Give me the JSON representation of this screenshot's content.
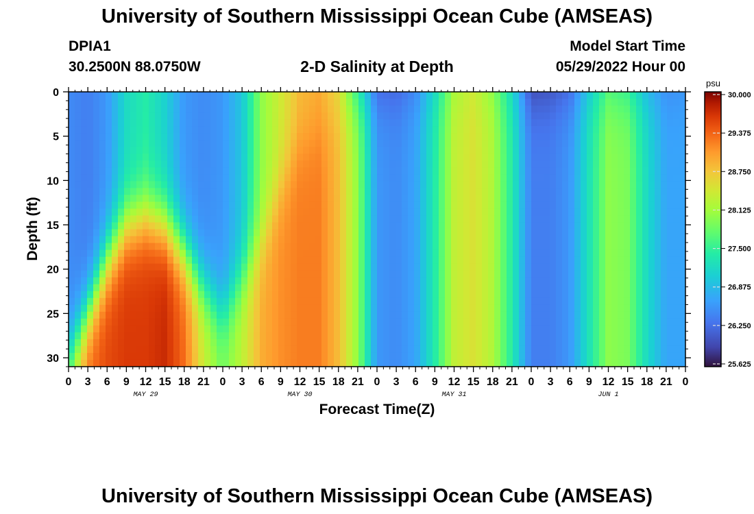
{
  "header": {
    "title": "University of Southern Mississippi Ocean Cube (AMSEAS)",
    "station": "DPIA1",
    "coords": "30.2500N  88.0750W",
    "subtitle": "2-D Salinity at Depth",
    "start_label": "Model Start Time",
    "start_value": "05/29/2022 Hour 00"
  },
  "footer": {
    "title": "University of Southern Mississippi Ocean Cube (AMSEAS)"
  },
  "chart_data": {
    "type": "heatmap",
    "title": "2-D Salinity at Depth",
    "xlabel": "Forecast Time(Z)",
    "ylabel": "Depth (ft)",
    "x_range_hours": [
      0,
      96
    ],
    "y_range_ft": [
      0,
      31
    ],
    "y_inverted": true,
    "x_tick_labels": [
      "0",
      "3",
      "6",
      "9",
      "12",
      "15",
      "18",
      "21",
      "0",
      "3",
      "6",
      "9",
      "12",
      "15",
      "18",
      "21",
      "0",
      "3",
      "6",
      "9",
      "12",
      "15",
      "18",
      "21",
      "0",
      "3",
      "6",
      "9",
      "12",
      "15",
      "18",
      "21",
      "0"
    ],
    "day_labels": [
      {
        "label": "MAY 29",
        "hour": 12
      },
      {
        "label": "MAY 30",
        "hour": 36
      },
      {
        "label": "MAY 31",
        "hour": 60
      },
      {
        "label": "JUN 1",
        "hour": 84
      }
    ],
    "y_ticks": [
      0,
      5,
      10,
      15,
      20,
      25,
      30
    ],
    "colorbar": {
      "unit": "psu",
      "min": 25.625,
      "max": 30.0,
      "tick_labels": [
        "30.000",
        "29.375",
        "28.750",
        "28.125",
        "27.500",
        "26.875",
        "26.250",
        "25.625"
      ]
    },
    "salinity_profile": {
      "hours": [
        0,
        3,
        6,
        9,
        12,
        15,
        18,
        21,
        24,
        27,
        30,
        33,
        36,
        39,
        42,
        45,
        48,
        51,
        54,
        57,
        60,
        63,
        66,
        69,
        72,
        75,
        78,
        81,
        84,
        87,
        90,
        93,
        96
      ],
      "surface_psu": [
        26.5,
        26.4,
        26.6,
        27.2,
        27.4,
        27.1,
        26.6,
        26.5,
        26.6,
        27.0,
        28.0,
        28.4,
        28.8,
        28.9,
        28.5,
        27.0,
        26.0,
        26.0,
        26.3,
        27.0,
        28.0,
        28.3,
        27.8,
        27.0,
        25.7,
        25.8,
        26.0,
        26.8,
        27.4,
        27.2,
        26.6,
        26.4,
        26.5
      ],
      "bottom_psu": [
        28.2,
        29.3,
        29.5,
        29.6,
        29.6,
        29.7,
        29.3,
        28.4,
        27.9,
        28.3,
        28.9,
        29.1,
        29.2,
        29.2,
        28.8,
        28.0,
        26.6,
        26.5,
        26.7,
        27.4,
        28.3,
        28.5,
        28.2,
        27.4,
        26.4,
        26.4,
        26.6,
        27.3,
        28.0,
        27.9,
        27.2,
        26.7,
        26.7
      ],
      "halocline_ft": [
        30,
        25,
        19,
        15,
        14,
        15,
        18,
        22,
        25,
        21,
        17,
        11,
        6,
        4,
        2,
        0,
        0,
        0,
        0,
        0,
        0,
        0,
        0,
        0,
        0,
        0,
        0,
        0,
        0,
        0,
        0,
        0,
        0
      ]
    }
  }
}
